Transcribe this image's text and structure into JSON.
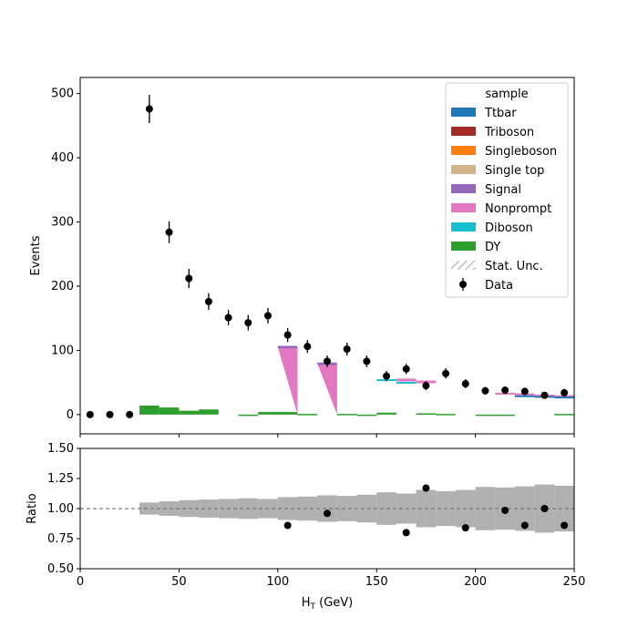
{
  "chart_data": {
    "type": "bar",
    "xlabel": "H",
    "xlabel_sub": "T",
    "xlabel_unit": " (GeV)",
    "xlim": [
      0,
      250
    ],
    "xticks": [
      0,
      50,
      100,
      150,
      200,
      250
    ],
    "grid": false,
    "legend_position": "upper-right",
    "top_panel": {
      "ylabel": "Events",
      "ylim": [
        -30,
        525
      ],
      "yticks": [
        0,
        100,
        200,
        300,
        400,
        500
      ],
      "legend_title": "sample",
      "legend": [
        {
          "label": "Ttbar",
          "kind": "patch",
          "color": "#1f77b4"
        },
        {
          "label": "Triboson",
          "kind": "patch",
          "color": "#a52a2a"
        },
        {
          "label": "Singleboson",
          "kind": "patch",
          "color": "#ff7f0e"
        },
        {
          "label": "Single top",
          "kind": "patch",
          "color": "#d2b48c"
        },
        {
          "label": "Signal",
          "kind": "patch",
          "color": "#9467bd"
        },
        {
          "label": "Nonprompt",
          "kind": "patch",
          "color": "#e377c2"
        },
        {
          "label": "Diboson",
          "kind": "patch",
          "color": "#17becf"
        },
        {
          "label": "DY",
          "kind": "patch",
          "color": "#2ca02c"
        },
        {
          "label": "Stat. Unc.",
          "kind": "hatch",
          "color": "#888888"
        },
        {
          "label": "Data",
          "kind": "marker",
          "color": "#000000"
        }
      ],
      "dy": {
        "color": "#2ca02c",
        "bins": [
          [
            30,
            40,
            14
          ],
          [
            40,
            50,
            11
          ],
          [
            50,
            60,
            6
          ],
          [
            60,
            70,
            8
          ],
          [
            80,
            90,
            -2
          ],
          [
            90,
            110,
            4
          ],
          [
            110,
            120,
            1
          ],
          [
            130,
            140,
            1
          ],
          [
            140,
            150,
            -1
          ],
          [
            150,
            160,
            3
          ],
          [
            170,
            180,
            2
          ],
          [
            180,
            190,
            1
          ],
          [
            200,
            210,
            -1
          ],
          [
            210,
            220,
            -1
          ],
          [
            240,
            250,
            1
          ]
        ]
      },
      "nonprompt": {
        "color": "#e377c2",
        "triangles": [
          [
            100,
            110,
            105
          ],
          [
            120,
            130,
            80
          ]
        ],
        "small_bins": [
          [
            160,
            170,
            56
          ],
          [
            170,
            180,
            53
          ]
        ]
      },
      "signal": {
        "color": "#9467bd",
        "bins": [
          [
            100,
            110,
            107
          ],
          [
            120,
            130,
            81
          ]
        ]
      },
      "diboson": {
        "color": "#17becf",
        "bins": [
          [
            150,
            160,
            55
          ],
          [
            160,
            170,
            51
          ]
        ]
      },
      "ttbar": {
        "color": "#1f77b4",
        "bins": [
          [
            220,
            230,
            30
          ],
          [
            230,
            240,
            29
          ],
          [
            240,
            250,
            28
          ]
        ]
      },
      "mc_tail": {
        "color": "#e377c2",
        "bins": [
          [
            210,
            220,
            34
          ],
          [
            220,
            230,
            33
          ],
          [
            230,
            240,
            31
          ],
          [
            240,
            250,
            30
          ]
        ]
      },
      "data": {
        "x": [
          5,
          15,
          25,
          35,
          45,
          55,
          65,
          75,
          85,
          95,
          105,
          115,
          125,
          135,
          145,
          155,
          165,
          175,
          185,
          195,
          205,
          215,
          225,
          235,
          245
        ],
        "y": [
          0,
          0,
          0,
          476,
          284,
          212,
          176,
          151,
          143,
          154,
          124,
          106,
          83,
          102,
          83,
          60,
          71,
          45,
          64,
          48,
          37,
          38,
          36,
          30,
          34
        ],
        "err": [
          0,
          0,
          0,
          22,
          17,
          15,
          13,
          12,
          12,
          12,
          11,
          10,
          9,
          10,
          9,
          8,
          8,
          7,
          8,
          7,
          6,
          6,
          6,
          5,
          6
        ]
      }
    },
    "ratio_panel": {
      "ylabel": "Ratio",
      "ylim": [
        0.5,
        1.5
      ],
      "yticks": [
        0.5,
        0.75,
        1.0,
        1.25,
        1.5
      ],
      "ytick_labels": [
        "0.50",
        "0.75",
        "1.00",
        "1.25",
        "1.50"
      ],
      "reference": 1.0,
      "unc_band": {
        "color": "#b0b0b0",
        "bins": [
          [
            30,
            40,
            0.95,
            1.05
          ],
          [
            40,
            50,
            0.94,
            1.06
          ],
          [
            50,
            60,
            0.93,
            1.07
          ],
          [
            60,
            70,
            0.925,
            1.075
          ],
          [
            70,
            80,
            0.92,
            1.08
          ],
          [
            80,
            90,
            0.915,
            1.085
          ],
          [
            90,
            100,
            0.92,
            1.08
          ],
          [
            100,
            110,
            0.905,
            1.095
          ],
          [
            110,
            120,
            0.9,
            1.1
          ],
          [
            120,
            130,
            0.89,
            1.11
          ],
          [
            130,
            140,
            0.895,
            1.105
          ],
          [
            140,
            150,
            0.885,
            1.115
          ],
          [
            150,
            160,
            0.865,
            1.135
          ],
          [
            160,
            170,
            0.875,
            1.125
          ],
          [
            170,
            180,
            0.845,
            1.155
          ],
          [
            180,
            190,
            0.855,
            1.145
          ],
          [
            190,
            200,
            0.845,
            1.155
          ],
          [
            200,
            210,
            0.82,
            1.18
          ],
          [
            210,
            220,
            0.825,
            1.175
          ],
          [
            220,
            230,
            0.815,
            1.185
          ],
          [
            230,
            240,
            0.8,
            1.2
          ],
          [
            240,
            250,
            0.81,
            1.19
          ]
        ]
      },
      "points": {
        "x": [
          105,
          125,
          165,
          175,
          195,
          215,
          225,
          235,
          245
        ],
        "y": [
          0.86,
          0.96,
          0.8,
          1.17,
          0.84,
          0.985,
          0.86,
          1.0,
          0.86
        ]
      }
    }
  }
}
